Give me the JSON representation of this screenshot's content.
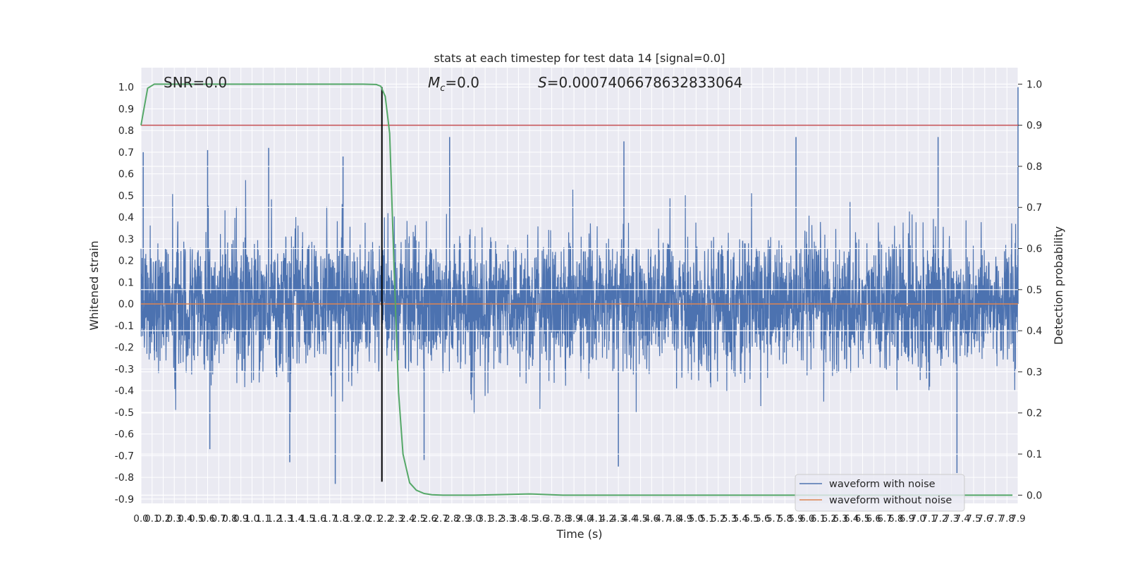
{
  "chart_data": {
    "type": "line",
    "title": "stats at each timestep for test data 14 [signal=0.0]",
    "xlabel": "Time (s)",
    "ylabel": "Whitened strain",
    "y2label": "Detection probability",
    "xlim": [
      0.0,
      7.9
    ],
    "ylim": [
      -0.92,
      1.09
    ],
    "y2lim": [
      -0.02,
      1.04
    ],
    "x_ticks": [
      "0.0",
      "0.1",
      "0.2",
      "0.3",
      "0.4",
      "0.5",
      "0.6",
      "0.7",
      "0.8",
      "0.9",
      "1.0",
      "1.1",
      "1.2",
      "1.3",
      "1.4",
      "1.5",
      "1.6",
      "1.7",
      "1.8",
      "1.9",
      "2.0",
      "2.1",
      "2.2",
      "2.3",
      "2.4",
      "2.5",
      "2.6",
      "2.7",
      "2.8",
      "2.9",
      "3.0",
      "3.1",
      "3.2",
      "3.3",
      "3.4",
      "3.5",
      "3.6",
      "3.7",
      "3.8",
      "3.9",
      "4.0",
      "4.1",
      "4.2",
      "4.3",
      "4.4",
      "4.5",
      "4.6",
      "4.7",
      "4.8",
      "4.9",
      "5.0",
      "5.1",
      "5.2",
      "5.3",
      "5.4",
      "5.5",
      "5.6",
      "5.7",
      "5.8",
      "5.9",
      "6.0",
      "6.1",
      "6.2",
      "6.3",
      "6.4",
      "6.5",
      "6.6",
      "6.7",
      "6.8",
      "6.9",
      "7.0",
      "7.1",
      "7.2",
      "7.3",
      "7.4",
      "7.5",
      "7.6",
      "7.7",
      "7.8",
      "7.9"
    ],
    "y_ticks": [
      "1.0",
      "0.9",
      "0.8",
      "0.7",
      "0.6",
      "0.5",
      "0.4",
      "0.3",
      "0.2",
      "0.1",
      "0.0",
      "-0.1",
      "-0.2",
      "-0.3",
      "-0.4",
      "-0.5",
      "-0.6",
      "-0.7",
      "-0.8",
      "-0.9"
    ],
    "y_tick_values": [
      1.0,
      0.9,
      0.8,
      0.7,
      0.6,
      0.5,
      0.4,
      0.3,
      0.2,
      0.1,
      0.0,
      -0.1,
      -0.2,
      -0.3,
      -0.4,
      -0.5,
      -0.6,
      -0.7,
      -0.8,
      -0.9
    ],
    "y2_ticks": [
      "1.0",
      "0.9",
      "0.8",
      "0.7",
      "0.6",
      "0.5",
      "0.4",
      "0.3",
      "0.2",
      "0.1",
      "0.0"
    ],
    "y2_tick_values": [
      1.0,
      0.9,
      0.8,
      0.7,
      0.6,
      0.5,
      0.4,
      0.3,
      0.2,
      0.1,
      0.0
    ],
    "grid": true,
    "legend_position": "lower-right",
    "annotations": {
      "snr": "SNR=0.0",
      "mc_symbol": "M",
      "mc_subscript": "c",
      "mc_value": "=0.0",
      "s_symbol": "S",
      "s_value": "=0.0007406678632833064"
    },
    "series": [
      {
        "name": "waveform with noise",
        "color": "#4c72b0",
        "axis": "left",
        "kind": "noise",
        "band_std": 0.15,
        "x_range": [
          0.0,
          7.9
        ],
        "notable_peaks": [
          {
            "x": 0.02,
            "y": 0.7
          },
          {
            "x": 0.6,
            "y": 0.71
          },
          {
            "x": 1.15,
            "y": 0.72
          },
          {
            "x": 1.82,
            "y": 0.68
          },
          {
            "x": 2.78,
            "y": 0.77
          },
          {
            "x": 4.35,
            "y": 0.75
          },
          {
            "x": 5.9,
            "y": 0.77
          },
          {
            "x": 7.18,
            "y": 0.77
          },
          {
            "x": 7.9,
            "y": 1.0
          },
          {
            "x": 1.75,
            "y": -0.83
          },
          {
            "x": 4.3,
            "y": -0.75
          },
          {
            "x": 7.35,
            "y": -0.78
          },
          {
            "x": 0.62,
            "y": -0.67
          },
          {
            "x": 1.34,
            "y": -0.73
          },
          {
            "x": 2.55,
            "y": -0.72
          }
        ]
      },
      {
        "name": "waveform without noise",
        "color": "#dd8452",
        "axis": "left",
        "x": [
          0.0,
          7.9
        ],
        "y": [
          0.0,
          0.0
        ]
      },
      {
        "name": "detection probability",
        "color": "#55a868",
        "axis": "right",
        "x": [
          0.0,
          0.06,
          0.12,
          0.3,
          1.0,
          2.0,
          2.12,
          2.16,
          2.2,
          2.24,
          2.28,
          2.32,
          2.36,
          2.42,
          2.48,
          2.55,
          2.62,
          2.72,
          3.0,
          3.5,
          3.8,
          4.5,
          6.0,
          7.85
        ],
        "y": [
          0.9,
          0.99,
          1.0,
          1.0,
          1.0,
          1.0,
          0.999,
          0.995,
          0.97,
          0.88,
          0.55,
          0.25,
          0.1,
          0.03,
          0.012,
          0.004,
          0.001,
          0.0,
          0.0,
          0.003,
          0.0,
          0.0,
          0.0,
          0.0
        ]
      }
    ],
    "threshold_line": {
      "axis": "right",
      "y": 0.9,
      "color": "#c44e52"
    },
    "marker_line": {
      "x": 2.17,
      "y_range": [
        -0.82,
        1.0
      ],
      "color": "#000000"
    }
  }
}
